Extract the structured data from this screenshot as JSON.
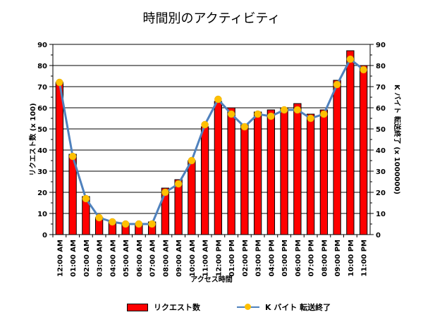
{
  "chart_data": {
    "type": "bar",
    "title": "時間別のアクティビティ",
    "xlabel": "アクセス時間",
    "ylabel": "リクエスト数 (x 100)",
    "y2label": "K バイト 転送終了 (x 1000000)",
    "ylim": [
      0,
      90
    ],
    "y2lim": [
      0,
      90
    ],
    "yticks": [
      0,
      10,
      20,
      30,
      40,
      50,
      60,
      70,
      80,
      90
    ],
    "grid": true,
    "legend_position": "bottom",
    "categories": [
      "12:00 AM",
      "01:00 AM",
      "02:00 AM",
      "03:00 AM",
      "04:00 AM",
      "05:00 AM",
      "06:00 AM",
      "07:00 AM",
      "08:00 AM",
      "09:00 AM",
      "10:00 AM",
      "11:00 AM",
      "12:00 PM",
      "01:00 PM",
      "02:00 PM",
      "03:00 PM",
      "04:00 PM",
      "05:00 PM",
      "06:00 PM",
      "07:00 PM",
      "08:00 PM",
      "09:00 PM",
      "10:00 PM",
      "11:00 PM"
    ],
    "series": [
      {
        "name": "リクエスト数",
        "type": "bar",
        "axis": "left",
        "color": "#ff0000",
        "values": [
          72,
          38,
          18,
          8,
          6,
          5,
          5,
          6,
          22,
          26,
          35,
          51,
          63,
          60,
          52,
          58,
          59,
          60,
          62,
          57,
          59,
          73,
          87,
          80
        ]
      },
      {
        "name": "K バイト 転送終了",
        "type": "line",
        "axis": "right",
        "color": "#4f81bd",
        "marker_color": "#ffc000",
        "values": [
          72,
          37,
          17,
          8,
          6,
          5,
          5,
          5,
          20,
          24,
          35,
          52,
          64,
          57,
          51,
          57,
          56,
          59,
          59,
          55,
          57,
          71,
          83,
          78
        ]
      }
    ]
  }
}
